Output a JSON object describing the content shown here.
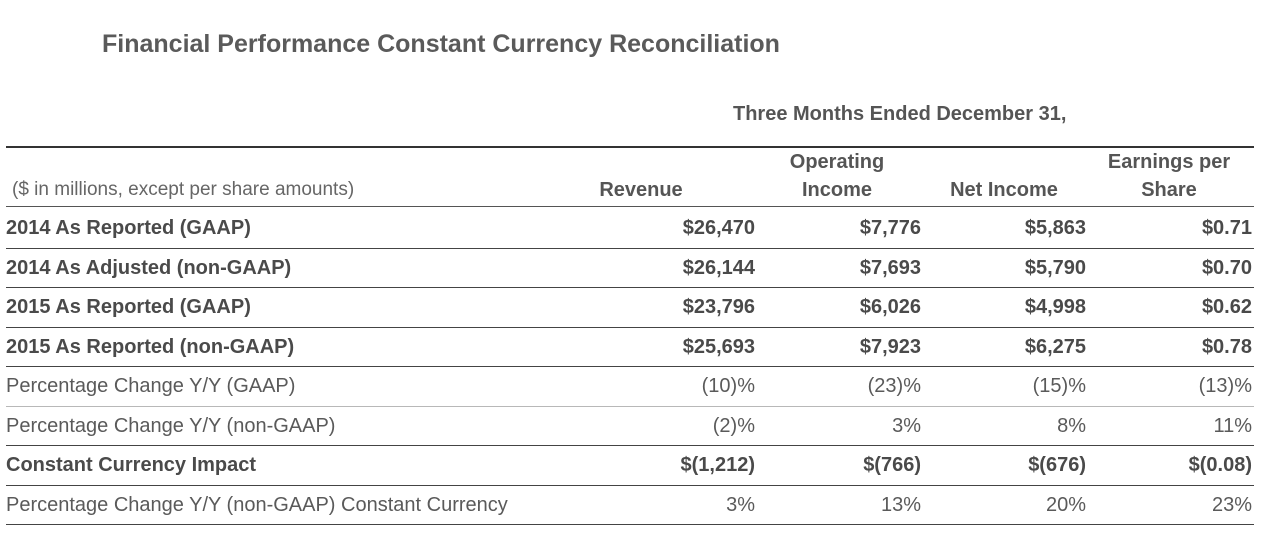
{
  "title": "Financial Performance Constant Currency Reconciliation",
  "period_header": "Three Months Ended December 31,",
  "table": {
    "units_label": "($ in millions, except per share amounts)",
    "columns": {
      "revenue": "Revenue",
      "operating_income": "Operating\nIncome",
      "net_income": "Net Income",
      "eps": "Earnings per\nShare"
    },
    "rows": [
      {
        "label": "2014 As Reported (GAAP)",
        "revenue": "$26,470",
        "operating_income": "$7,776",
        "net_income": "$5,863",
        "eps": "$0.71"
      },
      {
        "label": "2014 As Adjusted (non-GAAP)",
        "revenue": "$26,144",
        "operating_income": "$7,693",
        "net_income": "$5,790",
        "eps": "$0.70"
      },
      {
        "label": "2015 As Reported (GAAP)",
        "revenue": "$23,796",
        "operating_income": "$6,026",
        "net_income": "$4,998",
        "eps": "$0.62"
      },
      {
        "label": "2015 As Reported (non-GAAP)",
        "revenue": "$25,693",
        "operating_income": "$7,923",
        "net_income": "$6,275",
        "eps": "$0.78"
      },
      {
        "label": "Percentage Change Y/Y (GAAP)",
        "revenue": "(10)%",
        "operating_income": "(23)%",
        "net_income": "(15)%",
        "eps": "(13)%"
      },
      {
        "label": "Percentage Change Y/Y (non-GAAP)",
        "revenue": "(2)%",
        "operating_income": "3%",
        "net_income": "8%",
        "eps": "11%"
      },
      {
        "label": "Constant Currency Impact",
        "revenue": "$(1,212)",
        "operating_income": "$(766)",
        "net_income": "$(676)",
        "eps": "$(0.08)"
      },
      {
        "label": "Percentage Change Y/Y (non-GAAP) Constant Currency",
        "revenue": "3%",
        "operating_income": "13%",
        "net_income": "20%",
        "eps": "23%"
      }
    ]
  }
}
